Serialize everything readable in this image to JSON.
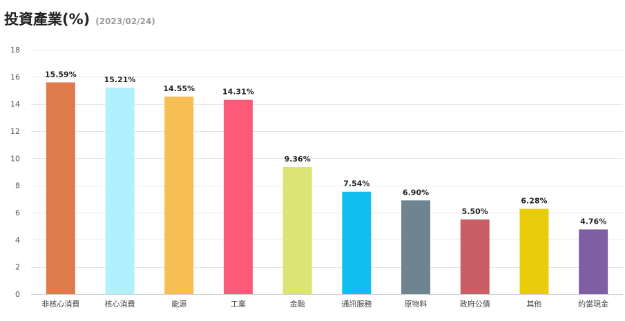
{
  "header": {
    "title": "投資產業(%)",
    "date": "(2023/02/24)"
  },
  "chart_data": {
    "type": "bar",
    "title": "投資產業(%)",
    "subtitle": "(2023/02/24)",
    "xlabel": "",
    "ylabel": "",
    "ylim": [
      0,
      18
    ],
    "yticks": [
      0,
      2,
      4,
      6,
      8,
      10,
      12,
      14,
      16,
      18
    ],
    "grid": true,
    "categories": [
      "非核心消費",
      "核心消費",
      "能源",
      "工業",
      "金融",
      "通訊服務",
      "原物料",
      "政府公債",
      "其他",
      "約當現金"
    ],
    "values": [
      15.59,
      15.21,
      14.55,
      14.31,
      9.36,
      7.54,
      6.9,
      5.5,
      6.28,
      4.76
    ],
    "data_labels": [
      "15.59%",
      "15.21%",
      "14.55%",
      "14.31%",
      "9.36%",
      "7.54%",
      "6.90%",
      "5.50%",
      "6.28%",
      "4.76%"
    ],
    "colors": [
      "#de7b4a",
      "#b0f1fd",
      "#f6be53",
      "#fb5a79",
      "#dce474",
      "#12bdf2",
      "#6e8490",
      "#c95f66",
      "#e9cd0b",
      "#7f5fa4"
    ]
  }
}
